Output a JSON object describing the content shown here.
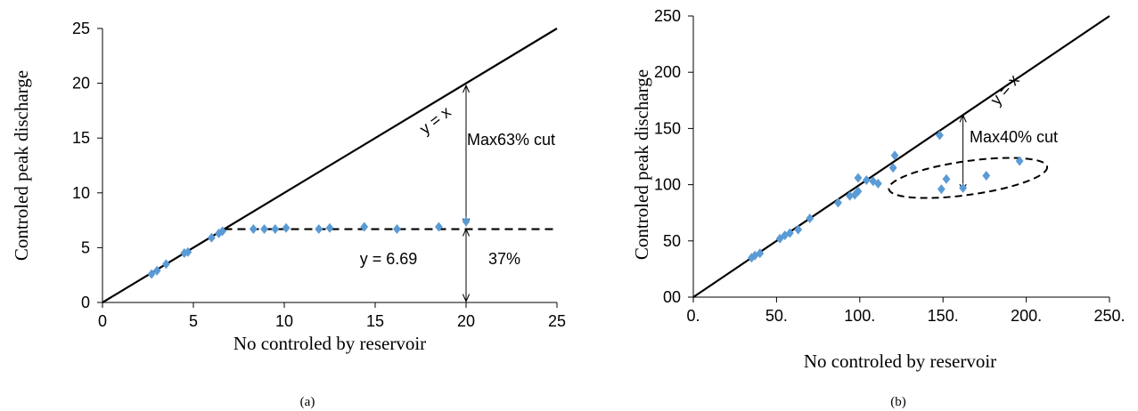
{
  "chart_data": [
    {
      "type": "scatter",
      "panel_label": "(a)",
      "xlabel": "No  controled  by reservoir",
      "ylabel": "Controled peak discharge",
      "xlim": [
        0,
        25
      ],
      "ylim": [
        0,
        25
      ],
      "x_ticks": [
        "0",
        "5",
        "10",
        "15",
        "20",
        "25"
      ],
      "y_ticks": [
        "0",
        "5",
        "10",
        "15",
        "20",
        "25"
      ],
      "grid": false,
      "marker_color": "#5b9bd5",
      "points": [
        {
          "x": 2.7,
          "y": 2.6
        },
        {
          "x": 3.0,
          "y": 2.9
        },
        {
          "x": 3.5,
          "y": 3.5
        },
        {
          "x": 4.5,
          "y": 4.5
        },
        {
          "x": 4.7,
          "y": 4.6
        },
        {
          "x": 6.0,
          "y": 5.9
        },
        {
          "x": 6.4,
          "y": 6.3
        },
        {
          "x": 6.6,
          "y": 6.5
        },
        {
          "x": 8.3,
          "y": 6.7
        },
        {
          "x": 8.9,
          "y": 6.7
        },
        {
          "x": 9.5,
          "y": 6.7
        },
        {
          "x": 10.1,
          "y": 6.8
        },
        {
          "x": 11.9,
          "y": 6.7
        },
        {
          "x": 12.5,
          "y": 6.8
        },
        {
          "x": 14.4,
          "y": 6.9
        },
        {
          "x": 16.2,
          "y": 6.7
        },
        {
          "x": 18.5,
          "y": 6.9
        },
        {
          "x": 20.0,
          "y": 7.4
        }
      ],
      "reference_lines": [
        {
          "label": "y = x",
          "x1": 0,
          "y1": 0,
          "x2": 25,
          "y2": 25,
          "style": "solid"
        },
        {
          "label": "y = 6.69",
          "x1": 6.69,
          "y1": 6.69,
          "x2": 25,
          "y2": 6.69,
          "style": "dashed"
        }
      ],
      "arrows": [
        {
          "x": 20,
          "y1": 19.8,
          "y2": 7.0,
          "label": "Max63% cut"
        },
        {
          "x": 20,
          "y1": 6.7,
          "y2": 0.1,
          "label": "37%"
        }
      ]
    },
    {
      "type": "scatter",
      "panel_label": "(b)",
      "xlabel": "No  controled  by reservoir",
      "ylabel": "Controled  peak discharge",
      "xlim": [
        0,
        250
      ],
      "ylim": [
        0,
        250
      ],
      "x_ticks": [
        "0.",
        "50.",
        "100.",
        "150.",
        "200.",
        "250."
      ],
      "y_ticks": [
        "00",
        "50",
        "100",
        "150",
        "200",
        "250"
      ],
      "grid": false,
      "marker_color": "#5b9bd5",
      "points": [
        {
          "x": 35,
          "y": 35
        },
        {
          "x": 37,
          "y": 37
        },
        {
          "x": 40,
          "y": 39
        },
        {
          "x": 52,
          "y": 52
        },
        {
          "x": 55,
          "y": 55
        },
        {
          "x": 58,
          "y": 57
        },
        {
          "x": 63,
          "y": 60
        },
        {
          "x": 70,
          "y": 70
        },
        {
          "x": 87,
          "y": 84
        },
        {
          "x": 94,
          "y": 90
        },
        {
          "x": 97,
          "y": 91
        },
        {
          "x": 99,
          "y": 94
        },
        {
          "x": 99,
          "y": 106
        },
        {
          "x": 104,
          "y": 104
        },
        {
          "x": 108,
          "y": 103
        },
        {
          "x": 111,
          "y": 101
        },
        {
          "x": 120,
          "y": 115
        },
        {
          "x": 121,
          "y": 126
        },
        {
          "x": 148,
          "y": 144
        },
        {
          "x": 149,
          "y": 96
        },
        {
          "x": 152,
          "y": 105
        },
        {
          "x": 162,
          "y": 97
        },
        {
          "x": 176,
          "y": 108
        },
        {
          "x": 196,
          "y": 121
        }
      ],
      "reference_lines": [
        {
          "label": "y = x",
          "x1": 0,
          "y1": 0,
          "x2": 250,
          "y2": 250,
          "style": "solid"
        }
      ],
      "arrows": [
        {
          "x": 162,
          "y1": 162,
          "y2": 94,
          "label": "Max40% cut"
        }
      ],
      "ellipse": {
        "cx": 165,
        "cy": 106,
        "rx": 48,
        "ry": 15,
        "rotate_deg": -8,
        "style": "dashed"
      }
    }
  ]
}
